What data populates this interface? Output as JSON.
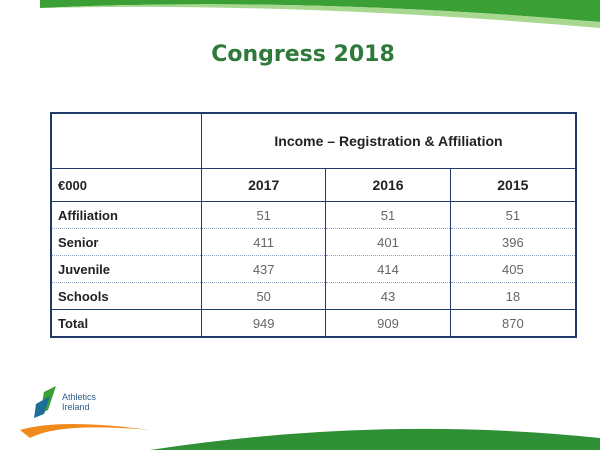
{
  "title": "Congress 2018",
  "table": {
    "caption": "Income – Registration & Affiliation",
    "columns": [
      "€000",
      "2017",
      "2016",
      "2015"
    ],
    "rows": [
      [
        "Affiliation",
        51,
        51,
        51
      ],
      [
        "Senior",
        411,
        401,
        396
      ],
      [
        "Juvenile",
        437,
        414,
        405
      ],
      [
        "Schools",
        50,
        43,
        18
      ],
      [
        "Total",
        949,
        909,
        870
      ]
    ]
  },
  "logo": {
    "lines": [
      "Athletics",
      "Ireland"
    ]
  }
}
